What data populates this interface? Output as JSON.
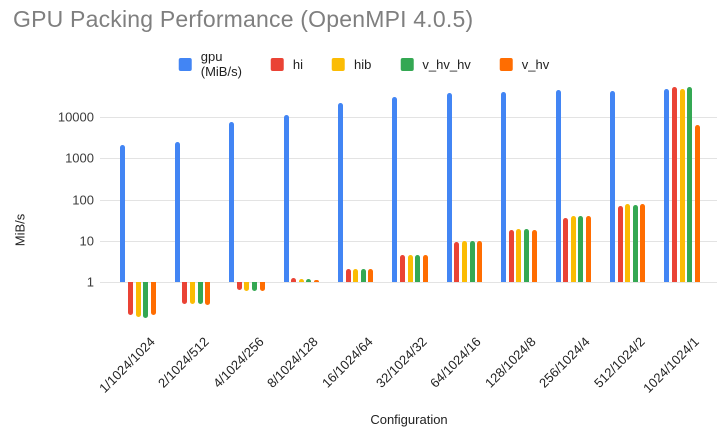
{
  "title": "GPU Packing Performance (OpenMPI 4.0.5)",
  "chart_data": {
    "type": "bar",
    "title": "GPU Packing Performance (OpenMPI 4.0.5)",
    "xlabel": "Configuration",
    "ylabel": "MiB/s",
    "y_scale": "log",
    "y_ticks": [
      1,
      10,
      100,
      1000,
      10000
    ],
    "ylim": [
      0.1,
      60000
    ],
    "grid": true,
    "legend_position": "top",
    "categories": [
      "1/1024/1024",
      "2/1024/512",
      "4/1024/256",
      "8/1024/128",
      "16/1024/64",
      "32/1024/32",
      "64/1024/16",
      "128/1024/8",
      "256/1024/4",
      "512/1024/2",
      "1024/1024/1"
    ],
    "series": [
      {
        "name": "gpu (MiB/s)",
        "color": "#4285F4",
        "values": [
          2100,
          2500,
          7800,
          11600,
          22000,
          30500,
          38000,
          42000,
          46000,
          42500,
          49000
        ]
      },
      {
        "name": "hi",
        "color": "#EA4335",
        "values": [
          0.16,
          0.3,
          0.65,
          1.25,
          2.1,
          4.6,
          9.5,
          18,
          35,
          70,
          53000
        ]
      },
      {
        "name": "hib",
        "color": "#FBBC04",
        "values": [
          0.14,
          0.29,
          0.6,
          1.2,
          2.05,
          4.5,
          9.8,
          19,
          39,
          78,
          49000
        ]
      },
      {
        "name": "v_hv_hv",
        "color": "#34A853",
        "values": [
          0.135,
          0.29,
          0.6,
          1.15,
          2.05,
          4.4,
          10,
          19,
          39,
          74,
          53000
        ]
      },
      {
        "name": "v_hv",
        "color": "#FF6D01",
        "values": [
          0.155,
          0.27,
          0.62,
          1.1,
          2.1,
          4.5,
          10,
          18,
          40,
          78,
          6600
        ]
      }
    ]
  }
}
